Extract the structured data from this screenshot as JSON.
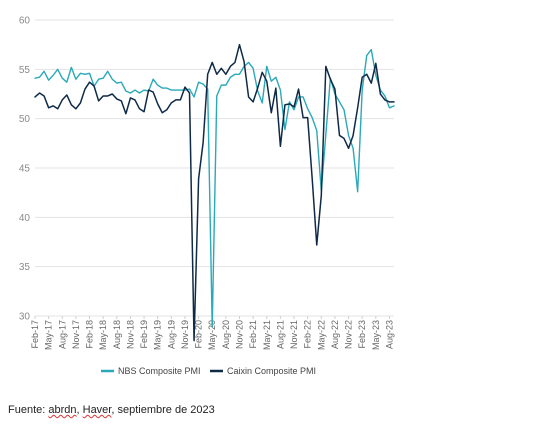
{
  "chart_data": {
    "type": "line",
    "ylim": [
      30,
      60
    ],
    "yticks": [
      30,
      35,
      40,
      45,
      50,
      55,
      60
    ],
    "grid": true,
    "legend_position": "bottom-center",
    "xtick_labels": [
      "Feb-17",
      "May-17",
      "Aug-17",
      "Nov-17",
      "Feb-18",
      "May-18",
      "Aug-18",
      "Nov-18",
      "Feb-19",
      "May-19",
      "Aug-19",
      "Nov-19",
      "Feb-20",
      "May-20",
      "Aug-20",
      "Nov-20",
      "Feb-21",
      "May-21",
      "Aug-21",
      "Nov-21",
      "Feb-22",
      "May-22",
      "Aug-22",
      "Nov-22",
      "Feb-23",
      "May-23",
      "Aug-23"
    ],
    "x_start": "Feb-17",
    "series": [
      {
        "name": "NBS Composite PMI",
        "color": "#2aa9b8",
        "values": [
          54.1,
          54.2,
          54.8,
          53.9,
          54.4,
          55.0,
          54.1,
          53.7,
          55.2,
          54.0,
          54.6,
          54.5,
          54.6,
          53.3,
          54.0,
          54.1,
          54.8,
          54.0,
          53.6,
          53.7,
          52.8,
          52.6,
          52.9,
          52.6,
          52.9,
          52.8,
          54.0,
          53.4,
          53.1,
          53.1,
          52.9,
          52.9,
          52.9,
          52.9,
          53.0,
          52.2,
          53.7,
          53.5,
          53.0,
          28.9,
          52.3,
          53.4,
          53.4,
          54.2,
          54.5,
          54.5,
          55.3,
          55.7,
          55.1,
          52.8,
          51.6,
          55.3,
          53.8,
          54.2,
          52.9,
          48.9,
          51.7,
          50.9,
          52.2,
          52.2,
          51.0,
          50.1,
          48.8,
          42.7,
          48.4,
          54.1,
          52.5,
          51.7,
          50.9,
          48.3,
          47.0,
          42.6,
          52.9,
          56.4,
          57.0,
          54.4,
          52.9,
          52.3,
          51.1,
          51.3
        ],
        "values_source": "estimated from line positions"
      },
      {
        "name": "Caixin Composite PMI",
        "color": "#0f2a47",
        "values": [
          52.2,
          52.6,
          52.3,
          51.1,
          51.3,
          51.0,
          51.9,
          52.4,
          51.4,
          51.0,
          51.6,
          53.0,
          53.7,
          53.3,
          51.8,
          52.3,
          52.3,
          52.5,
          52.0,
          51.8,
          50.5,
          52.1,
          51.9,
          51.0,
          50.7,
          52.9,
          52.7,
          51.5,
          50.6,
          50.9,
          51.6,
          51.9,
          51.9,
          53.2,
          52.6,
          27.5,
          43.9,
          47.6,
          54.5,
          55.7,
          54.5,
          55.1,
          54.5,
          55.3,
          55.7,
          57.5,
          55.8,
          52.2,
          51.7,
          53.1,
          54.7,
          53.8,
          50.6,
          53.1,
          47.2,
          51.4,
          51.5,
          51.2,
          53.0,
          50.1,
          50.1,
          43.9,
          37.2,
          42.2,
          55.3,
          54.0,
          53.0,
          48.3,
          48.0,
          47.0,
          48.3,
          51.1,
          54.2,
          54.5,
          53.6,
          55.6,
          52.5,
          51.9,
          51.7,
          51.7
        ],
        "values_source": "estimated from line positions"
      }
    ]
  },
  "source_note": {
    "prefix": "Fuente: ",
    "word1": "abrdn",
    "middle": ", ",
    "word2": "Haver",
    "suffix": ", septiembre de 2023"
  }
}
